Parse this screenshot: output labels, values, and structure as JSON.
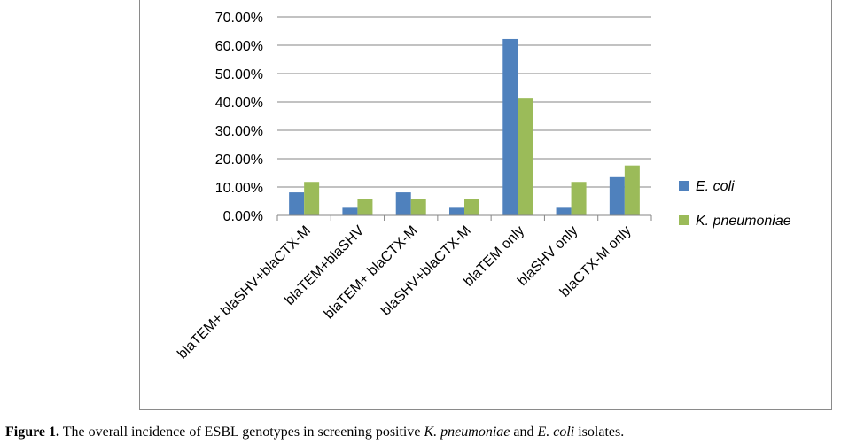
{
  "chart_data": {
    "type": "bar",
    "categories": [
      "blaTEM+ blaSHV+blaCTX-M",
      "blaTEM+blaSHV",
      "blaTEM+ blaCTX-M",
      "blaSHV+blaCTX-M",
      "blaTEM only",
      "blaSHV only",
      "blaCTX-M only"
    ],
    "series": [
      {
        "name": "E. coli",
        "color": "#4f81bd",
        "values": [
          8.1,
          2.7,
          8.1,
          2.7,
          62.2,
          2.7,
          13.5
        ]
      },
      {
        "name": "K. pneumoniae",
        "color": "#9bbb59",
        "values": [
          11.8,
          5.9,
          5.9,
          5.9,
          41.2,
          11.8,
          17.6
        ]
      }
    ],
    "ylim": [
      0,
      70
    ],
    "yticks": [
      "0.00%",
      "10.00%",
      "20.00%",
      "30.00%",
      "40.00%",
      "50.00%",
      "60.00%",
      "70.00%"
    ],
    "grid": true,
    "legend": "right"
  },
  "caption": {
    "label": "Figure 1.",
    "text_before": " The overall incidence of ESBL genotypes in screening positive ",
    "species_1": "K. pneumoniae",
    "text_middle": " and ",
    "species_2": "E. coli",
    "text_after": " isolates."
  }
}
